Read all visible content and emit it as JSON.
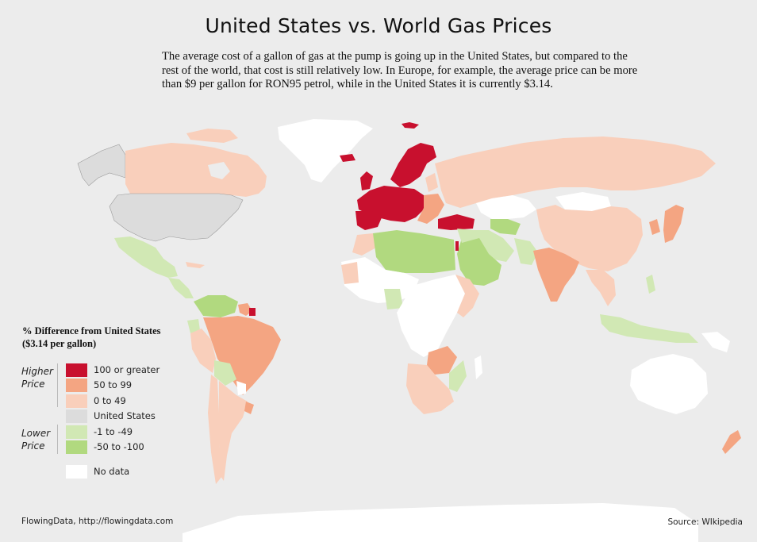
{
  "title": "United States vs. World Gas Prices",
  "description": "The average cost of a gallon of gas at the pump is going up in the United States, but compared to the rest of the world, that cost is still relatively low. In Europe, for example, the average price can be more than $9 per gallon for RON95 petrol, while in the United States it is currently $3.14.",
  "legend": {
    "title_line1": "% Difference from United States",
    "title_line2": "($3.14 per gallon)",
    "higher_label_1": "Higher",
    "higher_label_2": "Price",
    "lower_label_1": "Lower",
    "lower_label_2": "Price",
    "categories": [
      {
        "label": "100 or greater",
        "color": "#c8102e"
      },
      {
        "label": "50 to 99",
        "color": "#f4a582"
      },
      {
        "label": "0 to 49",
        "color": "#f9cfbb"
      },
      {
        "label": "United States",
        "color": "#dcdcdc"
      },
      {
        "label": "-1 to -49",
        "color": "#d1e8b4"
      },
      {
        "label": "-50 to -100",
        "color": "#b1d97f"
      },
      {
        "label": "No data",
        "color": "#ffffff"
      }
    ]
  },
  "credit": "FlowingData, http://flowingdata.com",
  "source": "Source: WIkipedia",
  "colors": {
    "background": "#ececec",
    "high": "#c8102e",
    "mid": "#f4a582",
    "low": "#f9cfbb",
    "us": "#dcdcdc",
    "green_light": "#d1e8b4",
    "green_dark": "#b1d97f",
    "nodata": "#ffffff"
  }
}
